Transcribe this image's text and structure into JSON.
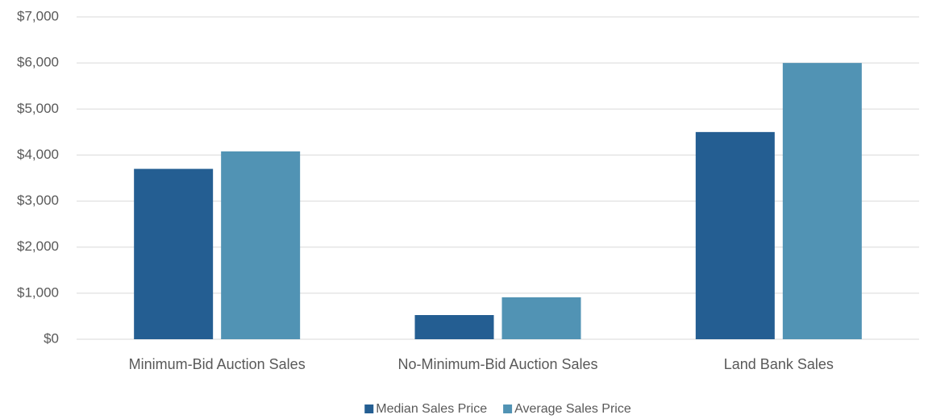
{
  "chart_data": {
    "type": "bar",
    "categories": [
      "Minimum-Bid Auction Sales",
      "No-Minimum-Bid Auction Sales",
      "Land Bank Sales"
    ],
    "series": [
      {
        "name": "Median Sales Price",
        "color": "#245e92",
        "values": [
          3700,
          525,
          4500
        ]
      },
      {
        "name": "Average Sales Price",
        "color": "#5193b4",
        "values": [
          4080,
          910,
          6000
        ]
      }
    ],
    "ylim": [
      0,
      7000
    ],
    "yticks": [
      {
        "value": 0,
        "label": "$0"
      },
      {
        "value": 1000,
        "label": "$1,000"
      },
      {
        "value": 2000,
        "label": "$2,000"
      },
      {
        "value": 3000,
        "label": "$3,000"
      },
      {
        "value": 4000,
        "label": "$4,000"
      },
      {
        "value": 5000,
        "label": "$5,000"
      },
      {
        "value": 6000,
        "label": "$6,000"
      },
      {
        "value": 7000,
        "label": "$7,000"
      }
    ],
    "grid": true,
    "legend": "bottom"
  }
}
